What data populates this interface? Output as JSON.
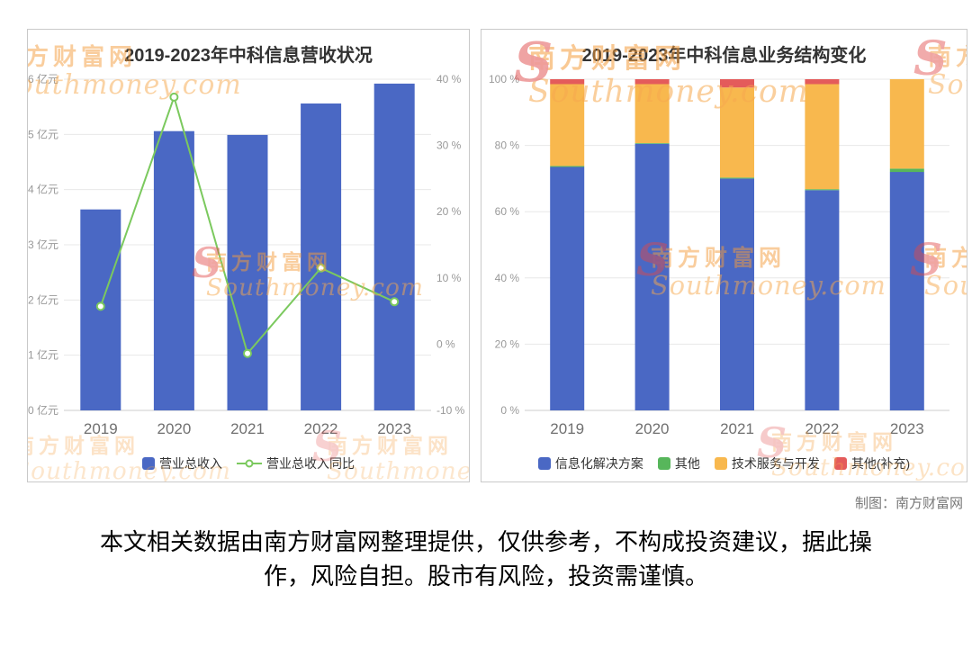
{
  "watermark": {
    "cn": "南方财富网",
    "en": "Southmoney.com",
    "mark": "S"
  },
  "credit": "制图：南方财富网",
  "disclaimer": "本文相关数据由南方财富网整理提供，仅供参考，不构成投资建议，据此操作，风险自担。股市有风险，投资需谨慎。",
  "chart_data": [
    {
      "type": "bar",
      "subtype": "bar-line-combo",
      "title": "2019-2023年中科信息营收状况",
      "categories": [
        "2019",
        "2020",
        "2021",
        "2022",
        "2023"
      ],
      "bar_series": {
        "name": "营业总收入",
        "unit": "亿元",
        "color": "#4a68c4",
        "values": [
          3.64,
          5.06,
          4.99,
          5.56,
          5.92
        ]
      },
      "line_series": {
        "name": "营业总收入同比",
        "unit": "%",
        "color": "#7bc95e",
        "values": [
          5.7,
          37.3,
          -1.4,
          11.5,
          6.4
        ]
      },
      "y_left": {
        "min": 0,
        "max": 6,
        "tick_labels": [
          "0 亿元",
          "1 亿元",
          "2 亿元",
          "3 亿元",
          "4 亿元",
          "5 亿元",
          "6 亿元"
        ]
      },
      "y_right": {
        "min": -10,
        "max": 40,
        "tick_labels": [
          "-10 %",
          "0 %",
          "10 %",
          "20 %",
          "30 %",
          "40 %"
        ]
      },
      "grid": true,
      "legend_position": "bottom"
    },
    {
      "type": "bar",
      "subtype": "stacked-100-percent",
      "title": "2019-2023年中科信息业务结构变化",
      "categories": [
        "2019",
        "2020",
        "2021",
        "2022",
        "2023"
      ],
      "series": [
        {
          "name": "信息化解决方案",
          "color": "#4a68c4",
          "values": [
            73.5,
            80.5,
            70.0,
            66.5,
            72.0
          ]
        },
        {
          "name": "其他",
          "color": "#57b65b",
          "values": [
            0.3,
            0.2,
            0.3,
            0.3,
            1.0
          ]
        },
        {
          "name": "技术服务与开发",
          "color": "#f8b84e",
          "values": [
            24.7,
            17.8,
            27.2,
            31.7,
            27.0
          ]
        },
        {
          "name": "其他(补充)",
          "color": "#e45b5b",
          "values": [
            1.5,
            1.5,
            2.5,
            1.5,
            0
          ]
        }
      ],
      "y_axis": {
        "min": 0,
        "max": 100,
        "tick_labels": [
          "0 %",
          "20 %",
          "40 %",
          "60 %",
          "80 %",
          "100 %"
        ]
      },
      "grid": true,
      "legend_position": "bottom"
    }
  ]
}
